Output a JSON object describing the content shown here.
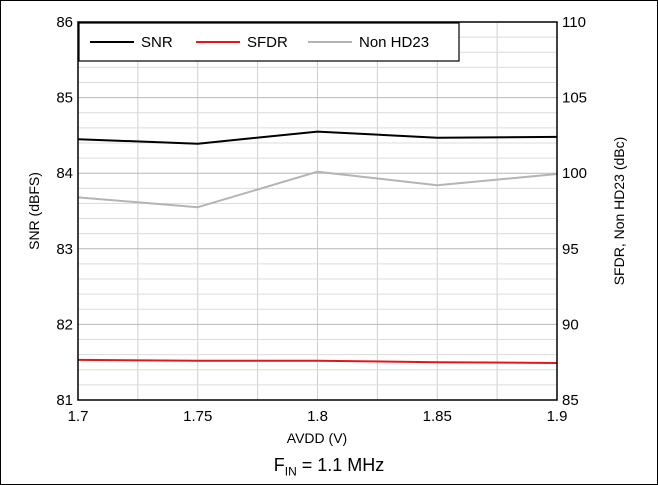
{
  "chart_data": {
    "type": "line",
    "x": [
      1.7,
      1.75,
      1.8,
      1.85,
      1.9
    ],
    "xlabel": "AVDD (V)",
    "ylabel": "SNR (dBFS)",
    "y2label": "SFDR, Non HD23 (dBc)",
    "xlim": [
      1.7,
      1.9
    ],
    "ylim": [
      81,
      86
    ],
    "y2lim": [
      85,
      110
    ],
    "xticks": [
      "1.7",
      "1.75",
      "1.8",
      "1.85",
      "1.9"
    ],
    "yticks": [
      "81",
      "82",
      "83",
      "84",
      "85",
      "86"
    ],
    "y2ticks": [
      "85",
      "90",
      "95",
      "100",
      "105",
      "110"
    ],
    "grid": true,
    "legend_position": "top-left",
    "series": [
      {
        "name": "SNR",
        "axis": "left",
        "color": "#000000",
        "values": [
          84.45,
          84.39,
          84.55,
          84.47,
          84.48
        ]
      },
      {
        "name": "SFDR",
        "axis": "right",
        "color": "#e8141c",
        "values": [
          87.65,
          87.6,
          87.6,
          87.5,
          87.45
        ]
      },
      {
        "name": "Non HD23",
        "axis": "right",
        "color": "#b4b4b4",
        "values": [
          98.4,
          97.75,
          100.1,
          99.2,
          99.95
        ]
      }
    ]
  },
  "caption": {
    "main": "F",
    "sub": "IN",
    "rest": " = 1.1 MHz"
  }
}
